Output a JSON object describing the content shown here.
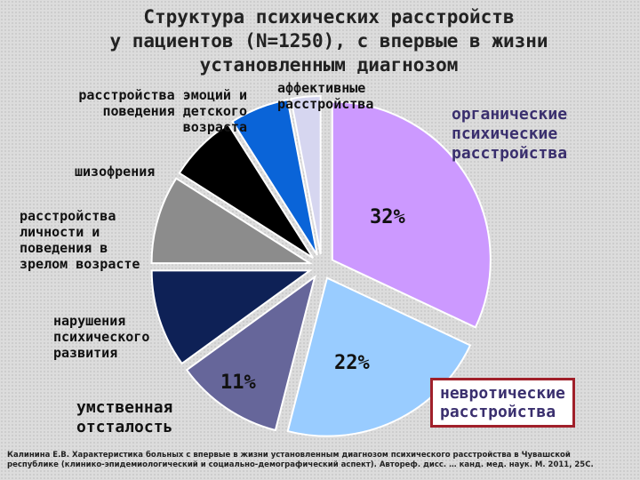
{
  "title_lines": [
    "Структура психических расстройств",
    "у пациентов (N=1250), с впервые  в жизни",
    "установленным диагнозом"
  ],
  "chart_data": {
    "type": "pie",
    "title": "Структура психических расстройств у пациентов (N=1250), с впервые  в жизни установленным диагнозом",
    "slices": [
      {
        "label": "органические психические расстройства",
        "value": 32,
        "color": "#cc99ff",
        "value_label": "32%"
      },
      {
        "label": "невротические расстройства",
        "value": 22,
        "color": "#99ccff",
        "value_label": "22%"
      },
      {
        "label": "умственная отсталость",
        "value": 11,
        "color": "#66669a",
        "value_label": "11%"
      },
      {
        "label": "нарушения психического развития",
        "value": 10,
        "color": "#0e2156"
      },
      {
        "label": "расстройства личности и поведения в зрелом возрасте",
        "value": 9,
        "color": "#8c8c8c"
      },
      {
        "label": "шизофрения",
        "value": 7,
        "color": "#000000"
      },
      {
        "label": "расстройства эмоций и поведения детского возраста",
        "value": 6,
        "color": "#0a64d8"
      },
      {
        "label": "аффективные расстройства",
        "value": 3,
        "color": "#d6d6f0"
      }
    ]
  },
  "labels": {
    "organic": [
      "органические",
      "психические",
      "расстройства"
    ],
    "affective": [
      "аффективные",
      "расстройства"
    ],
    "childhood": [
      "расстройства эмоций и",
      "поведения детского",
      "возраста"
    ],
    "schizo": [
      "шизофрения"
    ],
    "personality": [
      "расстройства",
      "личности и",
      "поведения в",
      "зрелом возрасте"
    ],
    "development": [
      "нарушения",
      "психического",
      "развития"
    ],
    "retardation": [
      "умственная",
      "отсталость"
    ],
    "neurotic": [
      "невротические",
      "расстройства"
    ]
  },
  "footer": {
    "line1": "Калинина Е.В. Характеристика больных с впервые в жизни установленным диагнозом психического расстройства в Чувашской",
    "line2": "республике (клинико-эпидемиологический и социально-демографический аспект). Автореф. дисс. … канд. мед. наук. М. 2011, 25С."
  }
}
